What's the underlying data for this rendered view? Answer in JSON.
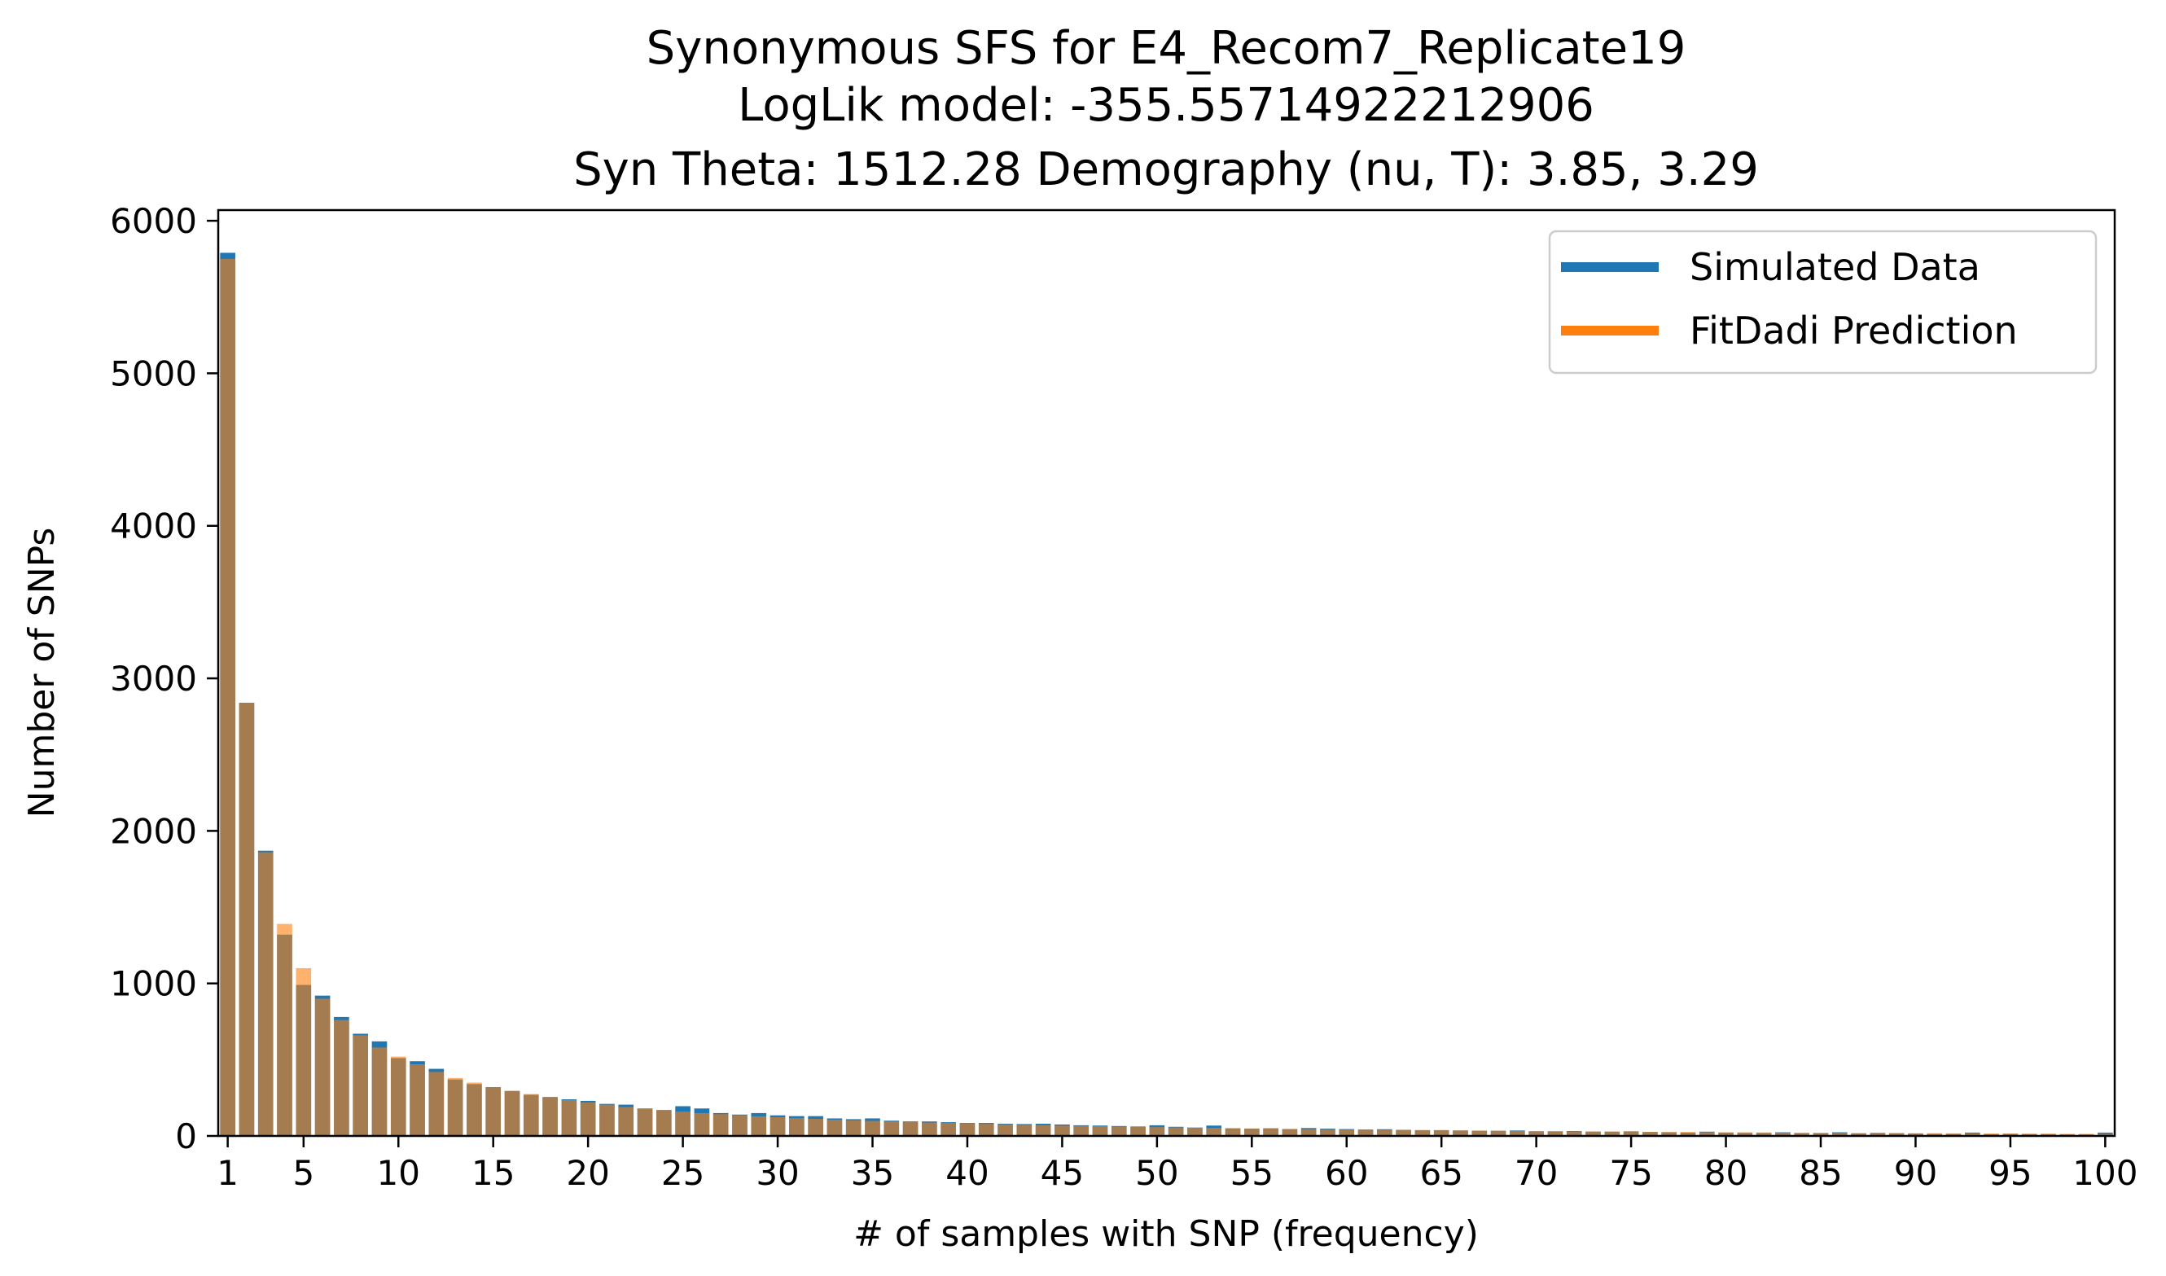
{
  "chart_data": {
    "type": "bar",
    "title_lines": [
      "Synonymous SFS for E4_Recom7_Replicate19",
      "LogLik model: -355.55714922212906",
      "Syn Theta: 1512.28 Demography (nu, T): 3.85, 3.29"
    ],
    "xlabel": "# of samples with SNP (frequency)",
    "ylabel": "Number of SNPs",
    "xlim": [
      0.5,
      100.5
    ],
    "ylim": [
      0,
      6070
    ],
    "x_ticks": [
      1,
      5,
      10,
      15,
      20,
      25,
      30,
      35,
      40,
      45,
      50,
      55,
      60,
      65,
      70,
      75,
      80,
      85,
      90,
      95,
      100
    ],
    "y_ticks": [
      0,
      1000,
      2000,
      3000,
      4000,
      5000,
      6000
    ],
    "grid": false,
    "legend_position": "top-right",
    "x": [
      1,
      2,
      3,
      4,
      5,
      6,
      7,
      8,
      9,
      10,
      11,
      12,
      13,
      14,
      15,
      16,
      17,
      18,
      19,
      20,
      21,
      22,
      23,
      24,
      25,
      26,
      27,
      28,
      29,
      30,
      31,
      32,
      33,
      34,
      35,
      36,
      37,
      38,
      39,
      40,
      41,
      42,
      43,
      44,
      45,
      46,
      47,
      48,
      49,
      50,
      51,
      52,
      53,
      54,
      55,
      56,
      57,
      58,
      59,
      60,
      61,
      62,
      63,
      64,
      65,
      66,
      67,
      68,
      69,
      70,
      71,
      72,
      73,
      74,
      75,
      76,
      77,
      78,
      79,
      80,
      81,
      82,
      83,
      84,
      85,
      86,
      87,
      88,
      89,
      90,
      91,
      92,
      93,
      94,
      95,
      96,
      97,
      98,
      99,
      100
    ],
    "series": [
      {
        "name": "Simulated Data",
        "color": "#1f77b4",
        "values": [
          5790,
          2840,
          1870,
          1320,
          990,
          920,
          780,
          670,
          620,
          510,
          490,
          440,
          370,
          340,
          320,
          295,
          270,
          255,
          240,
          230,
          210,
          205,
          180,
          170,
          195,
          180,
          150,
          140,
          150,
          135,
          130,
          130,
          115,
          110,
          115,
          100,
          95,
          95,
          90,
          85,
          85,
          80,
          78,
          80,
          75,
          70,
          68,
          65,
          62,
          70,
          60,
          55,
          68,
          50,
          48,
          50,
          45,
          52,
          48,
          45,
          42,
          44,
          40,
          38,
          38,
          36,
          34,
          34,
          36,
          30,
          30,
          32,
          28,
          28,
          30,
          26,
          24,
          22,
          28,
          22,
          20,
          20,
          24,
          18,
          18,
          24,
          16,
          20,
          18,
          16,
          14,
          14,
          22,
          12,
          14,
          12,
          12,
          10,
          10,
          22
        ]
      },
      {
        "name": "FitDadi Prediction",
        "color": "#ff7f0e",
        "values": [
          5750,
          2840,
          1860,
          1390,
          1100,
          900,
          760,
          660,
          580,
          520,
          470,
          420,
          380,
          350,
          320,
          295,
          275,
          255,
          235,
          220,
          205,
          190,
          180,
          170,
          160,
          150,
          143,
          136,
          129,
          123,
          117,
          112,
          107,
          103,
          99,
          95,
          91,
          88,
          85,
          82,
          79,
          76,
          73,
          71,
          68,
          66,
          64,
          62,
          60,
          58,
          56,
          54,
          53,
          51,
          49,
          48,
          46,
          45,
          44,
          42,
          41,
          40,
          39,
          38,
          37,
          36,
          35,
          34,
          33,
          32,
          31,
          30,
          30,
          29,
          28,
          27,
          26,
          26,
          25,
          24,
          24,
          23,
          22,
          22,
          21,
          20,
          20,
          19,
          19,
          18,
          18,
          17,
          17,
          16,
          16,
          15,
          15,
          14,
          14,
          14
        ]
      }
    ]
  }
}
